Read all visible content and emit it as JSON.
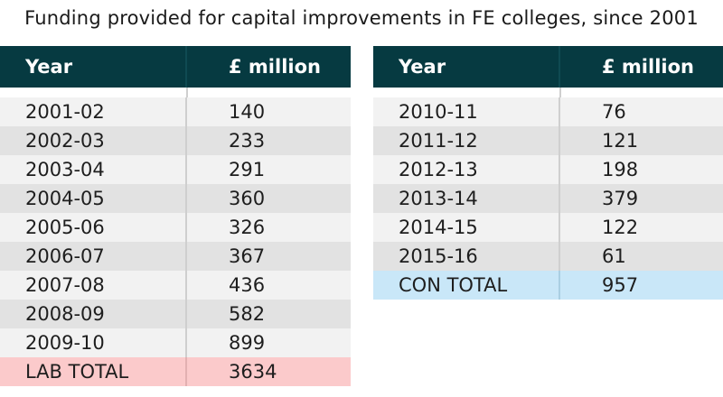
{
  "title": "Funding provided for capital improvements in FE colleges, since 2001",
  "headers": {
    "year": "Year",
    "amount": "£ million"
  },
  "left_rows": [
    {
      "year": "2001-02",
      "amount": "140"
    },
    {
      "year": "2002-03",
      "amount": "233"
    },
    {
      "year": "2003-04",
      "amount": "291"
    },
    {
      "year": "2004-05",
      "amount": "360"
    },
    {
      "year": "2005-06",
      "amount": "326"
    },
    {
      "year": "2006-07",
      "amount": "367"
    },
    {
      "year": "2007-08",
      "amount": "436"
    },
    {
      "year": "2008-09",
      "amount": "582"
    },
    {
      "year": "2009-10",
      "amount": "899"
    }
  ],
  "left_total": {
    "label": "LAB TOTAL",
    "amount": "3634"
  },
  "right_rows": [
    {
      "year": "2010-11",
      "amount": "76"
    },
    {
      "year": "2011-12",
      "amount": "121"
    },
    {
      "year": "2012-13",
      "amount": "198"
    },
    {
      "year": "2013-14",
      "amount": "379"
    },
    {
      "year": "2014-15",
      "amount": "122"
    },
    {
      "year": "2015-16",
      "amount": "61"
    }
  ],
  "right_total": {
    "label": "CON TOTAL",
    "amount": "957"
  },
  "colors": {
    "header_bg": "#063a41",
    "lab_total_bg": "#fbcacb",
    "con_total_bg": "#c9e7f8"
  }
}
